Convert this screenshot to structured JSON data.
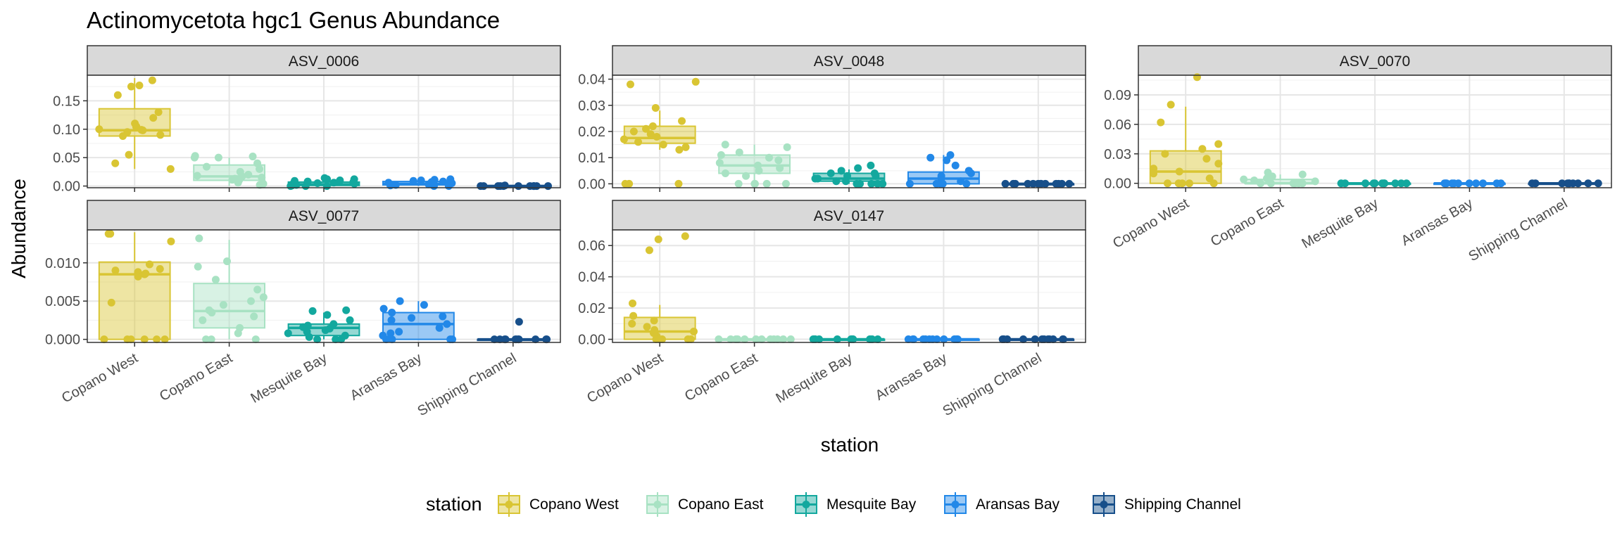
{
  "chart_data": {
    "type": "box",
    "title": "Actinomycetota hgc1 Genus Abundance",
    "xlabel": "station",
    "ylabel": "Abundance",
    "categories": [
      "Copano West",
      "Copano East",
      "Mesquite Bay",
      "Aransas Bay",
      "Shipping Channel"
    ],
    "colors": {
      "Copano West": "#D9C533",
      "Copano East": "#A8E2C3",
      "Mesquite Bay": "#13A89E",
      "Aransas Bay": "#2288E8",
      "Shipping Channel": "#174F8A"
    },
    "legend": {
      "title": "station",
      "position": "bottom"
    },
    "grid": true,
    "facets": [
      {
        "name": "ASV_0006",
        "yticks": [
          0.0,
          0.05,
          0.1,
          0.15
        ],
        "ytick_labels": [
          "0.00",
          "0.05",
          "0.10",
          "0.15"
        ],
        "ylim": [
          -0.003,
          0.195
        ],
        "boxes": [
          {
            "station": "Copano West",
            "whislo": 0.03,
            "q1": 0.088,
            "med": 0.098,
            "q3": 0.136,
            "whishi": 0.19
          },
          {
            "station": "Copano East",
            "whislo": 0.0,
            "q1": 0.01,
            "med": 0.017,
            "q3": 0.037,
            "whishi": 0.05
          },
          {
            "station": "Mesquite Bay",
            "whislo": 0.0,
            "q1": 0.001,
            "med": 0.003,
            "q3": 0.007,
            "whishi": 0.013
          },
          {
            "station": "Aransas Bay",
            "whislo": 0.0,
            "q1": 0.002,
            "med": 0.004,
            "q3": 0.008,
            "whishi": 0.012
          },
          {
            "station": "Shipping Channel",
            "whislo": 0.0,
            "q1": 0.0,
            "med": 0.0,
            "q3": 0.001,
            "whishi": 0.002
          }
        ],
        "points": [
          [
            0.186,
            0.177,
            0.175,
            0.16,
            0.13,
            0.12,
            0.11,
            0.105,
            0.104,
            0.1,
            0.099,
            0.098,
            0.095,
            0.09,
            0.088,
            0.055,
            0.04,
            0.03
          ],
          [
            0.053,
            0.05,
            0.04,
            0.034,
            0.03,
            0.025,
            0.02,
            0.018,
            0.017,
            0.015,
            0.013,
            0.011,
            0.01,
            0.006,
            0.004,
            0.002,
            0.05,
            0.052
          ],
          [
            0.014,
            0.012,
            0.01,
            0.009,
            0.008,
            0.007,
            0.006,
            0.004,
            0.003,
            0.002,
            0.001,
            0.0,
            0.0,
            0.0,
            0.012,
            0.005
          ],
          [
            0.012,
            0.011,
            0.01,
            0.009,
            0.008,
            0.007,
            0.006,
            0.005,
            0.004,
            0.003,
            0.002,
            0.002,
            0.001,
            0.0,
            0.0,
            0.006
          ],
          [
            0.001,
            0.0,
            0.0,
            0.0,
            0.0,
            0.0,
            0.0,
            0.0,
            0.0,
            0.0,
            0.0,
            0.0
          ]
        ]
      },
      {
        "name": "ASV_0048",
        "yticks": [
          0.0,
          0.01,
          0.02,
          0.03,
          0.04
        ],
        "ytick_labels": [
          "0.00",
          "0.01",
          "0.02",
          "0.03",
          "0.04"
        ],
        "ylim": [
          -0.0015,
          0.0415
        ],
        "boxes": [
          {
            "station": "Copano West",
            "whislo": 0.013,
            "q1": 0.0155,
            "med": 0.0175,
            "q3": 0.022,
            "whishi": 0.028
          },
          {
            "station": "Copano East",
            "whislo": 0.0,
            "q1": 0.004,
            "med": 0.007,
            "q3": 0.011,
            "whishi": 0.015
          },
          {
            "station": "Mesquite Bay",
            "whislo": 0.0,
            "q1": 0.001,
            "med": 0.002,
            "q3": 0.004,
            "whishi": 0.0055
          },
          {
            "station": "Aransas Bay",
            "whislo": 0.0,
            "q1": 0.0,
            "med": 0.002,
            "q3": 0.0045,
            "whishi": 0.011
          },
          {
            "station": "Shipping Channel",
            "whislo": 0.0,
            "q1": 0.0,
            "med": 0.0,
            "q3": 0.0,
            "whishi": 0.0
          }
        ],
        "points": [
          [
            0.039,
            0.038,
            0.029,
            0.024,
            0.022,
            0.021,
            0.02,
            0.019,
            0.018,
            0.017,
            0.016,
            0.015,
            0.014,
            0.013,
            0.0,
            0.0,
            0.0
          ],
          [
            0.015,
            0.014,
            0.012,
            0.011,
            0.01,
            0.009,
            0.008,
            0.007,
            0.006,
            0.005,
            0.004,
            0.003,
            0.0,
            0.0,
            0.0,
            0.0,
            0.0
          ],
          [
            0.007,
            0.006,
            0.005,
            0.004,
            0.004,
            0.003,
            0.003,
            0.002,
            0.002,
            0.001,
            0.001,
            0.0,
            0.0,
            0.0,
            0.0,
            0.0
          ],
          [
            0.01,
            0.009,
            0.007,
            0.005,
            0.004,
            0.003,
            0.002,
            0.001,
            0.0,
            0.0,
            0.0,
            0.0,
            0.0,
            0.011
          ],
          [
            0.0,
            0.0,
            0.0,
            0.0,
            0.0,
            0.0,
            0.0,
            0.0,
            0.0,
            0.0,
            0.0,
            0.0,
            0.0
          ]
        ]
      },
      {
        "name": "ASV_0070",
        "yticks": [
          0.0,
          0.03,
          0.06,
          0.09
        ],
        "ytick_labels": [
          "0.00",
          "0.03",
          "0.06",
          "0.09"
        ],
        "ylim": [
          -0.0045,
          0.11
        ],
        "boxes": [
          {
            "station": "Copano West",
            "whislo": 0.0,
            "q1": 0.0,
            "med": 0.012,
            "q3": 0.033,
            "whishi": 0.078
          },
          {
            "station": "Copano East",
            "whislo": 0.0,
            "q1": 0.0,
            "med": 0.0,
            "q3": 0.004,
            "whishi": 0.009
          },
          {
            "station": "Mesquite Bay",
            "whislo": 0.0,
            "q1": 0.0,
            "med": 0.0,
            "q3": 0.0,
            "whishi": 0.0
          },
          {
            "station": "Aransas Bay",
            "whislo": 0.0,
            "q1": 0.0,
            "med": 0.0,
            "q3": 0.0,
            "whishi": 0.0
          },
          {
            "station": "Shipping Channel",
            "whislo": 0.0,
            "q1": 0.0,
            "med": 0.0,
            "q3": 0.0,
            "whishi": 0.0
          }
        ],
        "points": [
          [
            0.108,
            0.08,
            0.062,
            0.04,
            0.035,
            0.03,
            0.025,
            0.02,
            0.015,
            0.012,
            0.01,
            0.005,
            0.0,
            0.0,
            0.0,
            0.0,
            0.0
          ],
          [
            0.011,
            0.009,
            0.007,
            0.005,
            0.004,
            0.003,
            0.002,
            0.0,
            0.0,
            0.0,
            0.0,
            0.0,
            0.0,
            0.0
          ],
          [
            0.0,
            0.0,
            0.0,
            0.0,
            0.0,
            0.0,
            0.0,
            0.0,
            0.0,
            0.0,
            0.0
          ],
          [
            0.0,
            0.0,
            0.0,
            0.0,
            0.0,
            0.0,
            0.0,
            0.0,
            0.0,
            0.0,
            0.0
          ],
          [
            0.0,
            0.0,
            0.0,
            0.0,
            0.0,
            0.0,
            0.0,
            0.0,
            0.0,
            0.0
          ]
        ]
      },
      {
        "name": "ASV_0077",
        "yticks": [
          0.0,
          0.005,
          0.01
        ],
        "ytick_labels": [
          "0.000",
          "0.005",
          "0.010"
        ],
        "ylim": [
          -0.0004,
          0.0143
        ],
        "boxes": [
          {
            "station": "Copano West",
            "whislo": 0.0,
            "q1": 0.0,
            "med": 0.0085,
            "q3": 0.0101,
            "whishi": 0.014
          },
          {
            "station": "Copano East",
            "whislo": 0.0,
            "q1": 0.0015,
            "med": 0.0037,
            "q3": 0.0073,
            "whishi": 0.013
          },
          {
            "station": "Mesquite Bay",
            "whislo": 0.0,
            "q1": 0.0005,
            "med": 0.0015,
            "q3": 0.002,
            "whishi": 0.0035
          },
          {
            "station": "Aransas Bay",
            "whislo": 0.0,
            "q1": 0.0,
            "med": 0.002,
            "q3": 0.0035,
            "whishi": 0.005
          },
          {
            "station": "Shipping Channel",
            "whislo": 0.0,
            "q1": 0.0,
            "med": 0.0,
            "q3": 0.0,
            "whishi": 0.0
          }
        ],
        "points": [
          [
            0.0138,
            0.0138,
            0.0128,
            0.0098,
            0.0092,
            0.009,
            0.0088,
            0.0086,
            0.0085,
            0.0082,
            0.0048,
            0.0,
            0.0,
            0.0,
            0.0,
            0.0,
            0.0
          ],
          [
            0.0132,
            0.0102,
            0.0095,
            0.0078,
            0.0065,
            0.0055,
            0.005,
            0.0045,
            0.0038,
            0.0035,
            0.003,
            0.0025,
            0.0015,
            0.0008,
            0.0,
            0.0,
            0.0
          ],
          [
            0.0038,
            0.0037,
            0.0032,
            0.0025,
            0.002,
            0.0018,
            0.0016,
            0.0014,
            0.0012,
            0.001,
            0.0008,
            0.0005,
            0.0003,
            0.0,
            0.0,
            0.0
          ],
          [
            0.005,
            0.0045,
            0.004,
            0.0035,
            0.003,
            0.0028,
            0.0025,
            0.002,
            0.0015,
            0.001,
            0.0008,
            0.0005,
            0.0,
            0.0,
            0.0,
            0.0
          ],
          [
            0.0023,
            0.0,
            0.0,
            0.0,
            0.0,
            0.0,
            0.0,
            0.0,
            0.0,
            0.0,
            0.0,
            0.0
          ]
        ]
      },
      {
        "name": "ASV_0147",
        "yticks": [
          0.0,
          0.02,
          0.04,
          0.06
        ],
        "ytick_labels": [
          "0.00",
          "0.02",
          "0.04",
          "0.06"
        ],
        "ylim": [
          -0.002,
          0.07
        ],
        "boxes": [
          {
            "station": "Copano West",
            "whislo": 0.0,
            "q1": 0.0,
            "med": 0.005,
            "q3": 0.014,
            "whishi": 0.022
          },
          {
            "station": "Copano East",
            "whislo": 0.0,
            "q1": 0.0,
            "med": 0.0,
            "q3": 0.0,
            "whishi": 0.0
          },
          {
            "station": "Mesquite Bay",
            "whislo": 0.0,
            "q1": 0.0,
            "med": 0.0,
            "q3": 0.0,
            "whishi": 0.0
          },
          {
            "station": "Aransas Bay",
            "whislo": 0.0,
            "q1": 0.0,
            "med": 0.0,
            "q3": 0.0,
            "whishi": 0.0
          },
          {
            "station": "Shipping Channel",
            "whislo": 0.0,
            "q1": 0.0,
            "med": 0.0,
            "q3": 0.0,
            "whishi": 0.0
          }
        ],
        "points": [
          [
            0.066,
            0.064,
            0.057,
            0.023,
            0.015,
            0.012,
            0.01,
            0.008,
            0.006,
            0.005,
            0.004,
            0.002,
            0.0,
            0.0,
            0.0,
            0.0,
            0.0
          ],
          [
            0.0,
            0.0,
            0.0,
            0.0,
            0.0,
            0.0,
            0.0,
            0.0,
            0.0,
            0.0,
            0.0,
            0.0
          ],
          [
            0.0,
            0.0,
            0.0,
            0.0,
            0.0,
            0.0,
            0.0,
            0.0,
            0.0,
            0.0,
            0.0,
            0.0
          ],
          [
            0.0,
            0.0,
            0.0,
            0.0,
            0.0,
            0.0,
            0.0,
            0.0,
            0.0,
            0.0,
            0.0,
            0.0
          ],
          [
            0.0,
            0.0,
            0.0,
            0.0,
            0.0,
            0.0,
            0.0,
            0.0,
            0.0,
            0.0,
            0.0,
            0.0
          ]
        ]
      }
    ]
  }
}
